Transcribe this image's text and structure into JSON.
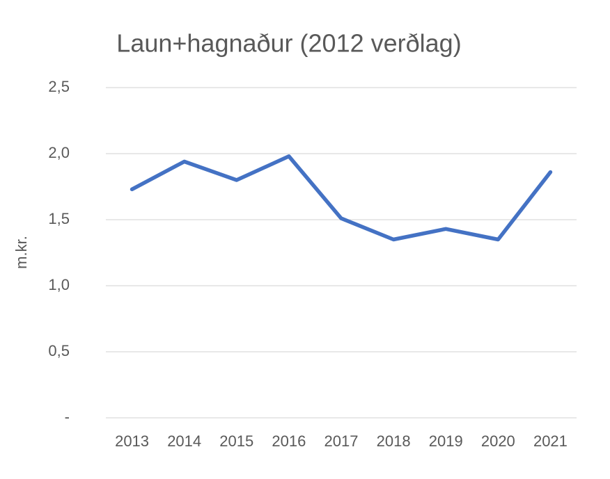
{
  "chart_data": {
    "type": "line",
    "title": "Laun+hagnaður (2012 verðlag)",
    "y_label": "m.kr.",
    "categories": [
      "2013",
      "2014",
      "2015",
      "2016",
      "2017",
      "2018",
      "2019",
      "2020",
      "2021"
    ],
    "series": [
      {
        "name": "Laun+hagnaður",
        "color": "#4472c4",
        "values": [
          1.73,
          1.94,
          1.8,
          1.98,
          1.51,
          1.35,
          1.43,
          1.35,
          1.86
        ]
      }
    ],
    "ylim": [
      0,
      2.5
    ],
    "yticks": [
      {
        "value": 0,
        "label": "-"
      },
      {
        "value": 0.5,
        "label": "0,5"
      },
      {
        "value": 1,
        "label": "1,0"
      },
      {
        "value": 1.5,
        "label": "1,5"
      },
      {
        "value": 2,
        "label": "2,0"
      },
      {
        "value": 2.5,
        "label": "2,5"
      }
    ],
    "grid": true,
    "legend": false
  }
}
